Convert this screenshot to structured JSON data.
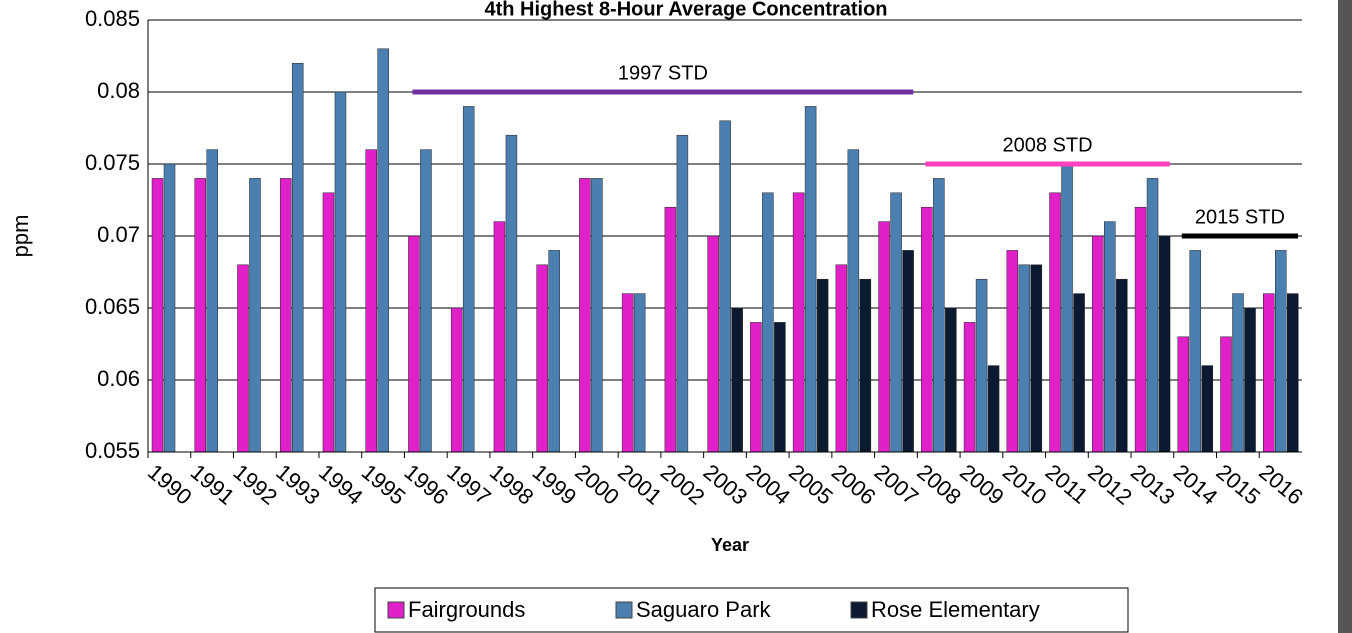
{
  "chart_data": {
    "type": "bar",
    "title": "4th Highest 8-Hour Average Concentration",
    "x_label": "Year",
    "y_label": "ppm",
    "categories": [
      "1990",
      "1991",
      "1992",
      "1993",
      "1994",
      "1995",
      "1996",
      "1997",
      "1998",
      "1999",
      "2000",
      "2001",
      "2002",
      "2003",
      "2004",
      "2005",
      "2006",
      "2007",
      "2008",
      "2009",
      "2010",
      "2011",
      "2012",
      "2013",
      "2014",
      "2015",
      "2016"
    ],
    "series": [
      {
        "name": "Fairgrounds",
        "color": "#e020c8",
        "values": [
          0.074,
          0.074,
          0.068,
          0.074,
          0.073,
          0.076,
          0.07,
          0.065,
          0.071,
          0.068,
          0.074,
          0.066,
          0.072,
          0.07,
          0.064,
          0.073,
          0.068,
          0.071,
          0.072,
          0.064,
          0.069,
          0.073,
          0.07,
          0.072,
          0.063,
          0.063,
          0.066
        ]
      },
      {
        "name": "Saguaro Park",
        "color": "#4a7fb0",
        "values": [
          0.075,
          0.076,
          0.074,
          0.082,
          0.08,
          0.083,
          0.076,
          0.079,
          0.077,
          0.069,
          0.074,
          0.066,
          0.077,
          0.078,
          0.073,
          0.079,
          0.076,
          0.073,
          0.074,
          0.067,
          0.068,
          0.075,
          0.071,
          0.074,
          0.069,
          0.066,
          0.069
        ]
      },
      {
        "name": "Rose Elementary",
        "color": "#0b1a30",
        "values": [
          null,
          null,
          null,
          null,
          null,
          null,
          null,
          null,
          null,
          null,
          null,
          null,
          null,
          0.065,
          0.064,
          0.067,
          0.067,
          0.069,
          0.065,
          0.061,
          0.068,
          0.066,
          0.067,
          0.07,
          0.061,
          0.065,
          0.066
        ]
      }
    ],
    "standards": [
      {
        "label": "1997 STD",
        "value": 0.08,
        "from": "1996",
        "to": "2007",
        "color": "#7030a0"
      },
      {
        "label": "2008 STD",
        "value": 0.075,
        "from": "2008",
        "to": "2013",
        "color": "#ff40c0"
      },
      {
        "label": "2015 STD",
        "value": 0.07,
        "from": "2014",
        "to": "2016",
        "color": "#000000"
      }
    ],
    "ylim": [
      0.055,
      0.085
    ],
    "yticks": [
      0.055,
      0.06,
      0.065,
      0.07,
      0.075,
      0.08,
      0.085
    ],
    "grid": true,
    "legend": "bottom"
  }
}
